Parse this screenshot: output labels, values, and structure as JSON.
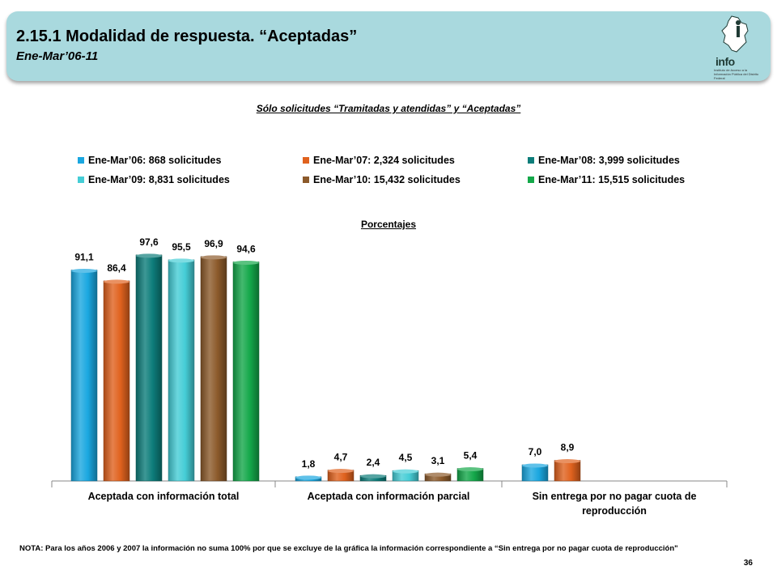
{
  "header": {
    "title": "2.15.1 Modalidad de respuesta. “Aceptadas”",
    "subtitle": "Ene-Mar’06-11",
    "logo_text": "info",
    "logo_small_text": "Instituto de Acceso a la Información Pública del Distrito Federal"
  },
  "subtitle": "Sólo solicitudes “Tramitadas y atendidas” y “Aceptadas”",
  "units_label": "Porcentajes",
  "note": "NOTA: Para los años 2006 y 2007 la información no suma 100% por que se excluye de la gráfica la información correspondiente a “Sin entrega por no pagar cuota de reproducción\"",
  "page_number": "36",
  "chart_data": {
    "type": "bar",
    "categories": [
      "Aceptada con información total",
      "Aceptada con información parcial",
      "Sin entrega por no pagar cuota de reproducción"
    ],
    "series": [
      {
        "name": "Ene-Mar’06: 868 solicitudes",
        "color": "#1aa7e0",
        "values": [
          91.1,
          1.8,
          7.0
        ],
        "labels": [
          "91,1",
          "1,8",
          "7,0"
        ]
      },
      {
        "name": "Ene-Mar’07: 2,324 solicitudes",
        "color": "#e0621e",
        "values": [
          86.4,
          4.7,
          8.9
        ],
        "labels": [
          "86,4",
          "4,7",
          "8,9"
        ]
      },
      {
        "name": "Ene-Mar’08: 3,999 solicitudes",
        "color": "#0d7d7a",
        "values": [
          97.6,
          2.4,
          null
        ],
        "labels": [
          "97,6",
          "2,4",
          ""
        ]
      },
      {
        "name": "Ene-Mar’09: 8,831 solicitudes",
        "color": "#45cdd6",
        "values": [
          95.5,
          4.5,
          null
        ],
        "labels": [
          "95,5",
          "4,5",
          ""
        ]
      },
      {
        "name": "Ene-Mar’10: 15,432 solicitudes",
        "color": "#8c5a2b",
        "values": [
          96.9,
          3.1,
          null
        ],
        "labels": [
          "96,9",
          "3,1",
          ""
        ]
      },
      {
        "name": "Ene-Mar’11: 15,515 solicitudes",
        "color": "#14a84a",
        "values": [
          94.6,
          5.4,
          null
        ],
        "labels": [
          "94,6",
          "5,4",
          ""
        ]
      }
    ],
    "ylim": [
      0,
      100
    ],
    "grid": false,
    "legend_position": "top"
  }
}
